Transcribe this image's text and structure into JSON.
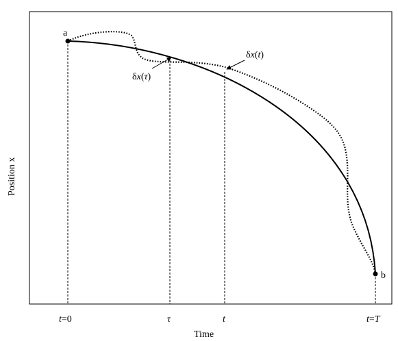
{
  "figure": {
    "ylabel": "Position x",
    "xlabel": "Time",
    "point_labels": {
      "a": "a",
      "b": "b"
    },
    "ticks": {
      "t0": {
        "var": "t",
        "rest": "=0"
      },
      "tau": {
        "var": "τ"
      },
      "t": {
        "var": "t"
      },
      "tT": {
        "var": "t",
        "eq": "=",
        "end": "T"
      }
    },
    "annotations": {
      "dx_tau": {
        "delta": "δ",
        "var": "x",
        "open": "(",
        "arg": "τ",
        "close": ")"
      },
      "dx_t": {
        "delta": "δ",
        "var": "x",
        "open": "(",
        "arg": "t",
        "close": ")"
      }
    },
    "colors": {
      "line": "#000000",
      "background": "#ffffff"
    }
  }
}
